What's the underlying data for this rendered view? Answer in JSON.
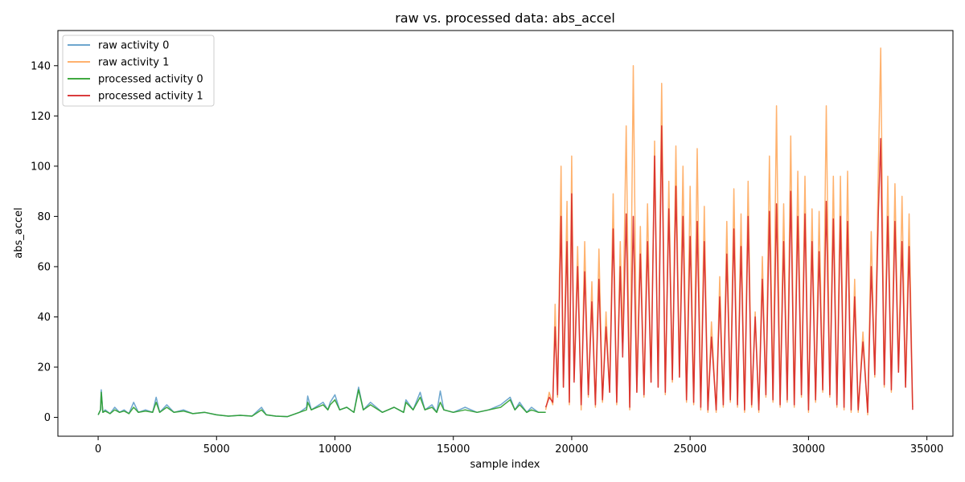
{
  "chart_data": {
    "type": "line",
    "title": "raw vs. processed data: abs_accel",
    "xlabel": "sample index",
    "ylabel": "abs_accel",
    "xlim": [
      -1700,
      36100
    ],
    "ylim": [
      -7.5,
      154
    ],
    "xticks": [
      0,
      5000,
      10000,
      15000,
      20000,
      25000,
      30000,
      35000
    ],
    "yticks": [
      0,
      20,
      40,
      60,
      80,
      100,
      120,
      140
    ],
    "grid": false,
    "legend_position": "top-left",
    "series": [
      {
        "name": "raw activity 0",
        "color": "#1f77b4",
        "alpha": 0.65,
        "x": [
          0,
          100,
          130,
          200,
          300,
          500,
          700,
          900,
          1100,
          1300,
          1500,
          1700,
          2000,
          2300,
          2450,
          2600,
          2900,
          3200,
          3600,
          4000,
          4500,
          5000,
          5500,
          6000,
          6500,
          6900,
          7100,
          7500,
          8000,
          8500,
          8800,
          8850,
          9000,
          9500,
          9700,
          9800,
          10000,
          10200,
          10500,
          10800,
          11000,
          11200,
          11500,
          12000,
          12500,
          12900,
          13000,
          13300,
          13600,
          13800,
          14100,
          14300,
          14450,
          14600,
          15000,
          15500,
          16000,
          16500,
          17000,
          17400,
          17600,
          17800,
          18100,
          18300,
          18600,
          18900
        ],
        "values": [
          1,
          3,
          11,
          2,
          3,
          1.5,
          4,
          2,
          3,
          1.5,
          6,
          2,
          3,
          2,
          8,
          2,
          5,
          2,
          3,
          1.5,
          2,
          1,
          0.5,
          0.8,
          0.5,
          4,
          1,
          0.5,
          0.3,
          2,
          4,
          8.5,
          3,
          6,
          3,
          6,
          9,
          3,
          4,
          2,
          12,
          3,
          6,
          2,
          4,
          2,
          7,
          3,
          10,
          3,
          5,
          2,
          10.5,
          3,
          2,
          4,
          2,
          3,
          5,
          8,
          3,
          6,
          2,
          4,
          2,
          2
        ]
      },
      {
        "name": "raw activity 1",
        "color": "#ff7f0e",
        "alpha": 0.6,
        "x": [
          18900,
          19050,
          19200,
          19300,
          19400,
          19550,
          19650,
          19800,
          19900,
          20000,
          20100,
          20250,
          20400,
          20550,
          20700,
          20850,
          21000,
          21150,
          21300,
          21450,
          21600,
          21750,
          21900,
          22050,
          22150,
          22300,
          22450,
          22600,
          22750,
          22900,
          23050,
          23200,
          23350,
          23500,
          23650,
          23800,
          23950,
          24100,
          24250,
          24400,
          24550,
          24700,
          24850,
          25000,
          25150,
          25300,
          25450,
          25600,
          25750,
          25900,
          26100,
          26250,
          26400,
          26550,
          26700,
          26850,
          27000,
          27150,
          27300,
          27450,
          27600,
          27750,
          27900,
          28050,
          28200,
          28350,
          28500,
          28650,
          28800,
          28950,
          29100,
          29250,
          29400,
          29550,
          29700,
          29850,
          30000,
          30150,
          30300,
          30450,
          30600,
          30750,
          30900,
          31050,
          31200,
          31350,
          31500,
          31650,
          31800,
          31950,
          32100,
          32300,
          32500,
          32650,
          32800,
          32950,
          33050,
          33200,
          33350,
          33500,
          33650,
          33800,
          33950,
          34100,
          34250,
          34400
        ],
        "values": [
          3,
          10,
          5,
          45,
          8,
          100,
          12,
          86,
          5,
          104,
          15,
          68,
          3,
          70,
          8,
          54,
          4,
          67,
          6,
          42,
          10,
          89,
          5,
          70,
          30,
          116,
          3,
          140,
          10,
          76,
          8,
          85,
          14,
          110,
          12,
          133,
          9,
          94,
          14,
          108,
          16,
          100,
          6,
          92,
          5,
          107,
          3,
          84,
          2,
          38,
          2,
          56,
          4,
          78,
          6,
          91,
          4,
          81,
          2,
          94,
          4,
          42,
          2,
          64,
          8,
          104,
          6,
          124,
          4,
          85,
          6,
          112,
          4,
          98,
          8,
          96,
          2,
          83,
          6,
          82,
          10,
          124,
          8,
          96,
          4,
          96,
          3,
          98,
          2,
          55,
          2,
          34,
          1,
          74,
          16,
          100,
          147,
          12,
          96,
          10,
          93,
          18,
          88,
          12,
          81,
          4
        ]
      },
      {
        "name": "processed activity 0",
        "color": "#2ca02c",
        "alpha": 0.9,
        "x": [
          0,
          100,
          130,
          200,
          300,
          500,
          700,
          900,
          1100,
          1300,
          1500,
          1700,
          2000,
          2300,
          2450,
          2600,
          2900,
          3200,
          3600,
          4000,
          4500,
          5000,
          5500,
          6000,
          6500,
          6900,
          7100,
          7500,
          8000,
          8500,
          8800,
          8850,
          9000,
          9500,
          9700,
          9800,
          10000,
          10200,
          10500,
          10800,
          11000,
          11200,
          11500,
          12000,
          12500,
          12900,
          13000,
          13300,
          13600,
          13800,
          14100,
          14300,
          14450,
          14600,
          15000,
          15500,
          16000,
          16500,
          17000,
          17400,
          17600,
          17800,
          18100,
          18300,
          18600,
          18900
        ],
        "values": [
          1,
          3,
          10,
          2,
          2.5,
          1.5,
          3,
          2,
          2.5,
          1.5,
          4,
          2,
          2.5,
          2,
          6,
          2,
          4,
          2,
          2.5,
          1.5,
          2,
          1,
          0.5,
          0.8,
          0.5,
          3,
          1,
          0.5,
          0.3,
          2,
          3,
          6,
          3,
          5,
          3,
          5,
          7,
          3,
          4,
          2,
          11,
          3,
          5,
          2,
          4,
          2,
          6,
          3,
          8,
          3,
          4,
          2,
          6,
          3,
          2,
          3,
          2,
          3,
          4,
          7,
          3,
          5,
          2,
          3,
          2,
          2
        ]
      },
      {
        "name": "processed activity 1",
        "color": "#d62728",
        "alpha": 0.9,
        "x": [
          18900,
          19050,
          19200,
          19300,
          19400,
          19550,
          19650,
          19800,
          19900,
          20000,
          20100,
          20250,
          20400,
          20550,
          20700,
          20850,
          21000,
          21150,
          21300,
          21450,
          21600,
          21750,
          21900,
          22050,
          22150,
          22300,
          22450,
          22600,
          22750,
          22900,
          23050,
          23200,
          23350,
          23500,
          23650,
          23800,
          23950,
          24100,
          24250,
          24400,
          24550,
          24700,
          24850,
          25000,
          25150,
          25300,
          25450,
          25600,
          25750,
          25900,
          26100,
          26250,
          26400,
          26550,
          26700,
          26850,
          27000,
          27150,
          27300,
          27450,
          27600,
          27750,
          27900,
          28050,
          28200,
          28350,
          28500,
          28650,
          28800,
          28950,
          29100,
          29250,
          29400,
          29550,
          29700,
          29850,
          30000,
          30150,
          30300,
          30450,
          30600,
          30750,
          30900,
          31050,
          31200,
          31350,
          31500,
          31650,
          31800,
          31950,
          32100,
          32300,
          32500,
          32650,
          32800,
          32950,
          33050,
          33200,
          33350,
          33500,
          33650,
          33800,
          33950,
          34100,
          34250,
          34400
        ],
        "values": [
          4,
          8,
          6,
          36,
          9,
          80,
          12,
          70,
          6,
          89,
          14,
          60,
          5,
          58,
          9,
          46,
          5,
          55,
          7,
          36,
          10,
          75,
          6,
          60,
          24,
          81,
          4,
          80,
          10,
          65,
          9,
          70,
          14,
          104,
          12,
          116,
          10,
          83,
          15,
          92,
          16,
          80,
          7,
          72,
          6,
          78,
          4,
          70,
          3,
          32,
          3,
          48,
          5,
          65,
          7,
          75,
          5,
          68,
          3,
          80,
          5,
          40,
          3,
          55,
          9,
          82,
          7,
          85,
          5,
          70,
          7,
          90,
          5,
          80,
          9,
          81,
          3,
          70,
          7,
          66,
          11,
          86,
          9,
          79,
          5,
          80,
          4,
          78,
          3,
          48,
          3,
          30,
          2,
          60,
          17,
          82,
          111,
          13,
          80,
          11,
          78,
          18,
          70,
          12,
          68,
          3
        ]
      }
    ]
  }
}
